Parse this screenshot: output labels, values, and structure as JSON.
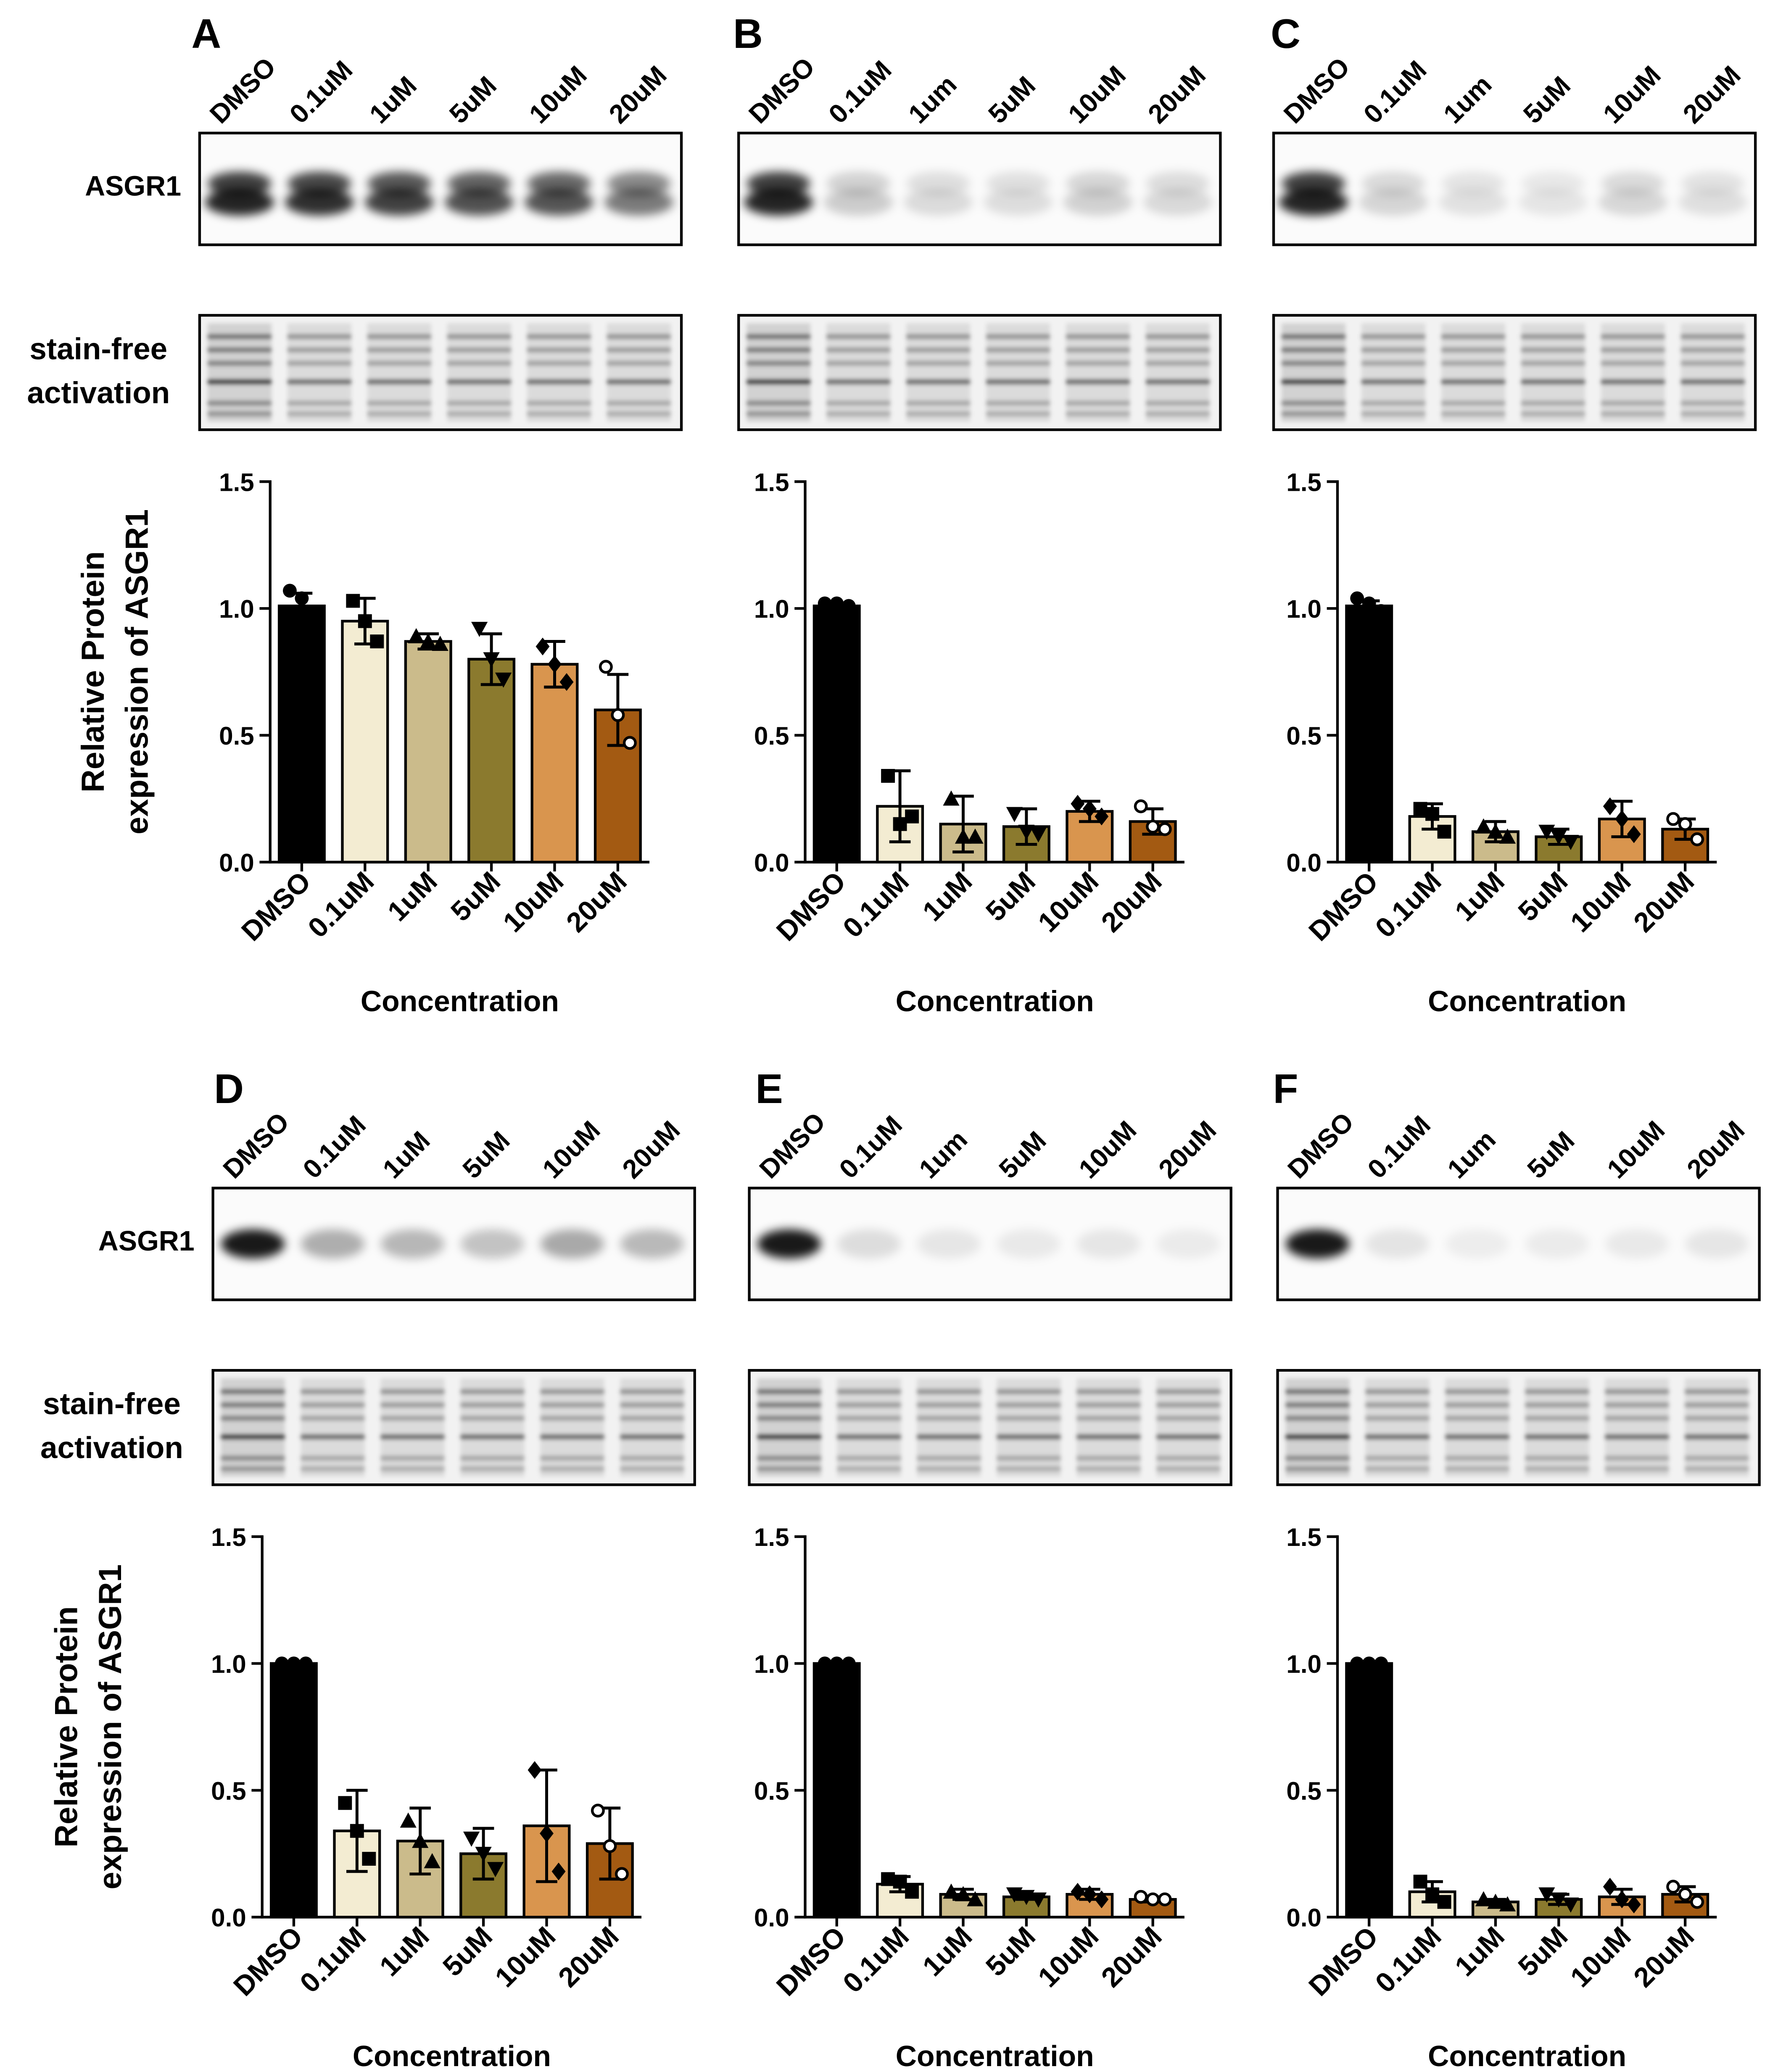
{
  "chart_data": [
    {
      "type": "bar",
      "panel": "A",
      "blot_lanes": [
        "DMSO",
        "0.1uM",
        "1uM",
        "5uM",
        "10uM",
        "20uM"
      ],
      "target_label": "ASGR1",
      "loading_label": [
        "stain-free",
        "activation"
      ],
      "ylabel": [
        "Relative Protein",
        "expression of ASGR1"
      ],
      "xlabel": "Concentration",
      "categories": [
        "DMSO",
        "0.1uM",
        "1uM",
        "5uM",
        "10uM",
        "20uM"
      ],
      "values": [
        1.01,
        0.95,
        0.87,
        0.8,
        0.78,
        0.6
      ],
      "errors": [
        0.05,
        0.09,
        0.03,
        0.1,
        0.09,
        0.14
      ],
      "points": [
        [
          1.07,
          1.04,
          0.98
        ],
        [
          1.03,
          0.95,
          0.87
        ],
        [
          0.89,
          0.87,
          0.86
        ],
        [
          0.92,
          0.8,
          0.72
        ],
        [
          0.85,
          0.78,
          0.71
        ],
        [
          0.77,
          0.58,
          0.47
        ]
      ],
      "colors": [
        "#000000",
        "#f3ecd2",
        "#cbbb8b",
        "#8b7a2e",
        "#d9954e",
        "#a35a12"
      ],
      "markers": [
        "circle",
        "square",
        "triangle",
        "triangle-down",
        "diamond",
        "circle-open"
      ],
      "ylim": [
        0,
        1.5
      ],
      "yticks": [
        {
          "value": 0,
          "label": "0.0"
        },
        0.5,
        {
          "value": 1,
          "label": "1.0"
        },
        1.5
      ]
    },
    {
      "type": "bar",
      "panel": "B",
      "blot_lanes": [
        "DMSO",
        "0.1uM",
        "1um",
        "5uM",
        "10uM",
        "20uM"
      ],
      "xlabel": "Concentration",
      "categories": [
        "DMSO",
        "0.1uM",
        "1uM",
        "5uM",
        "10uM",
        "20uM"
      ],
      "values": [
        1.01,
        0.22,
        0.15,
        0.14,
        0.2,
        0.16
      ],
      "errors": [
        0.01,
        0.14,
        0.11,
        0.07,
        0.04,
        0.05
      ],
      "points": [
        [
          1.02,
          1.02,
          1.01
        ],
        [
          0.34,
          0.15,
          0.18
        ],
        [
          0.25,
          0.1,
          0.1
        ],
        [
          0.19,
          0.12,
          0.11
        ],
        [
          0.23,
          0.21,
          0.18
        ],
        [
          0.22,
          0.14,
          0.13
        ]
      ],
      "colors": [
        "#000000",
        "#f3ecd2",
        "#cbbb8b",
        "#8b7a2e",
        "#d9954e",
        "#a35a12"
      ],
      "markers": [
        "circle",
        "square",
        "triangle",
        "triangle-down",
        "diamond",
        "circle-open"
      ],
      "ylim": [
        0,
        1.5
      ],
      "yticks": [
        {
          "value": 0,
          "label": "0.0"
        },
        0.5,
        {
          "value": 1,
          "label": "1.0"
        },
        1.5
      ]
    },
    {
      "type": "bar",
      "panel": "C",
      "blot_lanes": [
        "DMSO",
        "0.1uM",
        "1um",
        "5uM",
        "10uM",
        "20uM"
      ],
      "xlabel": "Concentration",
      "categories": [
        "DMSO",
        "0.1uM",
        "1uM",
        "5uM",
        "10uM",
        "20uM"
      ],
      "values": [
        1.01,
        0.18,
        0.12,
        0.1,
        0.17,
        0.13
      ],
      "errors": [
        0.02,
        0.05,
        0.04,
        0.03,
        0.07,
        0.04
      ],
      "points": [
        [
          1.04,
          1.02,
          0.99
        ],
        [
          0.21,
          0.19,
          0.12
        ],
        [
          0.14,
          0.12,
          0.1
        ],
        [
          0.12,
          0.1,
          0.08
        ],
        [
          0.22,
          0.17,
          0.11
        ],
        [
          0.17,
          0.15,
          0.09
        ]
      ],
      "colors": [
        "#000000",
        "#f3ecd2",
        "#cbbb8b",
        "#8b7a2e",
        "#d9954e",
        "#a35a12"
      ],
      "markers": [
        "circle",
        "square",
        "triangle",
        "triangle-down",
        "diamond",
        "circle-open"
      ],
      "ylim": [
        0,
        1.5
      ],
      "yticks": [
        {
          "value": 0,
          "label": "0.0"
        },
        0.5,
        {
          "value": 1,
          "label": "1.0"
        },
        1.5
      ]
    },
    {
      "type": "bar",
      "panel": "D",
      "blot_lanes": [
        "DMSO",
        "0.1uM",
        "1uM",
        "5uM",
        "10uM",
        "20uM"
      ],
      "target_label": "ASGR1",
      "loading_label": [
        "stain-free",
        "activation"
      ],
      "ylabel": [
        "Relative Protein",
        "expression of ASGR1"
      ],
      "xlabel": "Concentration",
      "categories": [
        "DMSO",
        "0.1uM",
        "1uM",
        "5uM",
        "10uM",
        "20uM"
      ],
      "values": [
        1.0,
        0.34,
        0.3,
        0.25,
        0.36,
        0.29
      ],
      "errors": [
        0,
        0.16,
        0.13,
        0.1,
        0.22,
        0.14
      ],
      "points": [
        [
          1,
          1,
          1
        ],
        [
          0.45,
          0.34,
          0.23
        ],
        [
          0.38,
          0.3,
          0.22
        ],
        [
          0.31,
          0.25,
          0.19
        ],
        [
          0.58,
          0.33,
          0.18
        ],
        [
          0.42,
          0.28,
          0.17
        ]
      ],
      "colors": [
        "#000000",
        "#f3ecd2",
        "#cbbb8b",
        "#8b7a2e",
        "#d9954e",
        "#a35a12"
      ],
      "markers": [
        "circle",
        "square",
        "triangle",
        "triangle-down",
        "diamond",
        "circle-open"
      ],
      "ylim": [
        0,
        1.5
      ],
      "yticks": [
        {
          "value": 0,
          "label": "0.0"
        },
        0.5,
        {
          "value": 1,
          "label": "1.0"
        },
        1.5
      ]
    },
    {
      "type": "bar",
      "panel": "E",
      "blot_lanes": [
        "DMSO",
        "0.1uM",
        "1um",
        "5uM",
        "10uM",
        "20uM"
      ],
      "xlabel": "Concentration",
      "categories": [
        "DMSO",
        "0.1uM",
        "1uM",
        "5uM",
        "10uM",
        "20uM"
      ],
      "values": [
        1.0,
        0.13,
        0.09,
        0.08,
        0.09,
        0.07
      ],
      "errors": [
        0,
        0.03,
        0.02,
        0.01,
        0.02,
        0.01
      ],
      "points": [
        [
          1,
          1,
          1
        ],
        [
          0.15,
          0.14,
          0.1
        ],
        [
          0.1,
          0.09,
          0.07
        ],
        [
          0.09,
          0.08,
          0.07
        ],
        [
          0.1,
          0.09,
          0.07
        ],
        [
          0.08,
          0.07,
          0.07
        ]
      ],
      "colors": [
        "#000000",
        "#f3ecd2",
        "#cbbb8b",
        "#8b7a2e",
        "#d9954e",
        "#a35a12"
      ],
      "markers": [
        "circle",
        "square",
        "triangle",
        "triangle-down",
        "diamond",
        "circle-open"
      ],
      "ylim": [
        0,
        1.5
      ],
      "yticks": [
        {
          "value": 0,
          "label": "0.0"
        },
        0.5,
        {
          "value": 1,
          "label": "1.0"
        },
        1.5
      ]
    },
    {
      "type": "bar",
      "panel": "F",
      "blot_lanes": [
        "DMSO",
        "0.1uM",
        "1um",
        "5uM",
        "10uM",
        "20uM"
      ],
      "xlabel": "Concentration",
      "categories": [
        "DMSO",
        "0.1uM",
        "1uM",
        "5uM",
        "10uM",
        "20uM"
      ],
      "values": [
        1.0,
        0.1,
        0.06,
        0.07,
        0.08,
        0.09
      ],
      "errors": [
        0,
        0.04,
        0.01,
        0.02,
        0.03,
        0.03
      ],
      "points": [
        [
          1,
          1,
          1
        ],
        [
          0.14,
          0.09,
          0.06
        ],
        [
          0.07,
          0.06,
          0.05
        ],
        [
          0.09,
          0.07,
          0.05
        ],
        [
          0.12,
          0.07,
          0.05
        ],
        [
          0.12,
          0.09,
          0.06
        ]
      ],
      "colors": [
        "#000000",
        "#f3ecd2",
        "#cbbb8b",
        "#8b7a2e",
        "#d9954e",
        "#a35a12"
      ],
      "markers": [
        "circle",
        "square",
        "triangle",
        "triangle-down",
        "diamond",
        "circle-open"
      ],
      "ylim": [
        0,
        1.5
      ],
      "yticks": [
        {
          "value": 0,
          "label": "0.0"
        },
        0.5,
        {
          "value": 1,
          "label": "1.0"
        },
        1.5
      ]
    }
  ]
}
